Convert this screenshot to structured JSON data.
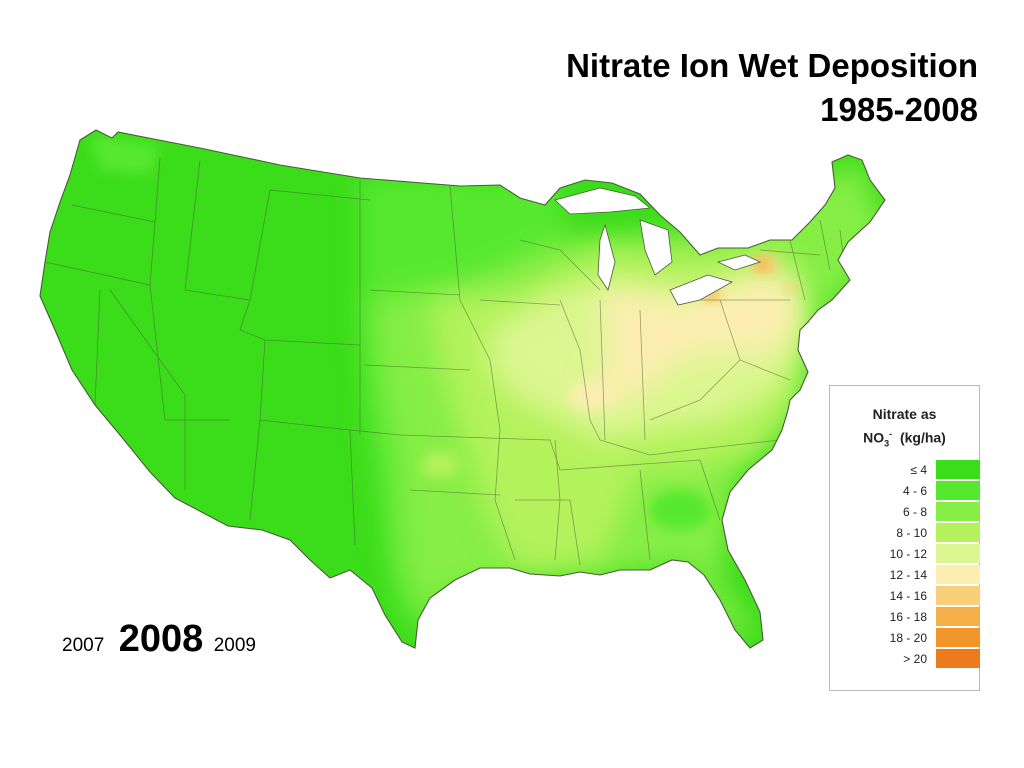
{
  "title": {
    "line1": "Nitrate Ion Wet Deposition",
    "line2": "1985-2008"
  },
  "year_nav": {
    "previous": "2007",
    "current": "2008",
    "next": "2009"
  },
  "legend": {
    "title_line1": "Nitrate as",
    "title_chem": "NO",
    "title_sub": "3",
    "title_sup": "-",
    "title_unit": "(kg/ha)",
    "classes": [
      {
        "label": "≤ 4",
        "color": "#3bdc1a"
      },
      {
        "label": "4 - 6",
        "color": "#56e82e"
      },
      {
        "label": "6 - 8",
        "color": "#86ee44"
      },
      {
        "label": "8 - 10",
        "color": "#b4f25c"
      },
      {
        "label": "10 - 12",
        "color": "#dcf690"
      },
      {
        "label": "12 - 14",
        "color": "#fbeeb0"
      },
      {
        "label": "14 - 16",
        "color": "#f9d07a"
      },
      {
        "label": "16 - 18",
        "color": "#f5b04a"
      },
      {
        "label": "18 - 20",
        "color": "#f2962a"
      },
      {
        "label": "> 20",
        "color": "#ee7a1e"
      }
    ]
  },
  "map": {
    "region": "contiguous-us",
    "border_color": "#4a5a3a",
    "zones": [
      {
        "class": "≤ 4",
        "color": "#3bdc1a"
      },
      {
        "class": "4 - 6",
        "color": "#56e82e"
      },
      {
        "class": "6 - 8",
        "color": "#86ee44"
      },
      {
        "class": "8 - 10",
        "color": "#b4f25c"
      },
      {
        "class": "10 - 12",
        "color": "#dcf690"
      },
      {
        "class": "12 - 14",
        "color": "#fbeeb0"
      },
      {
        "class": "14 - 16",
        "color": "#f9d07a"
      },
      {
        "class": "16 - 18",
        "color": "#f5b04a"
      }
    ]
  }
}
